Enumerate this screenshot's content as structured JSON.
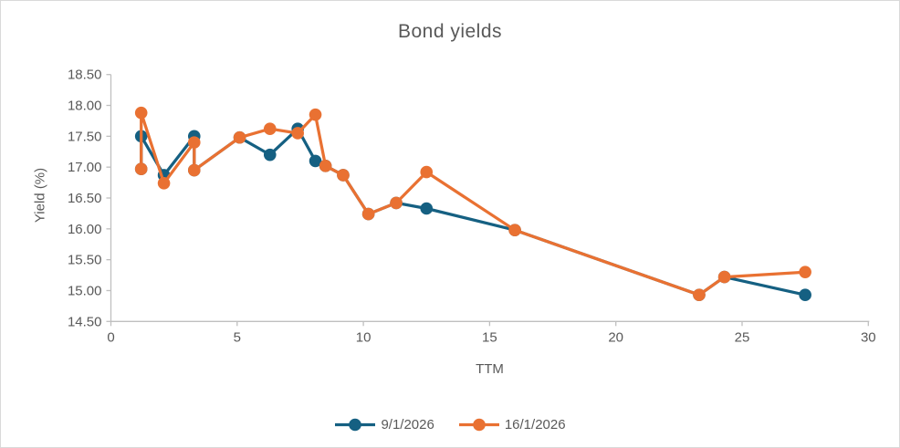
{
  "window": {
    "background": "#FFFFFF",
    "border_color": "#D9D9D9"
  },
  "chart_data": {
    "type": "line",
    "title": "Bond yields",
    "xlabel": "TTM",
    "ylabel": "Yield (%)",
    "xlim": [
      0,
      30
    ],
    "x_ticks": [
      0,
      5,
      10,
      15,
      20,
      25,
      30
    ],
    "ylim": [
      14.5,
      18.5
    ],
    "y_ticks": [
      18.5,
      18.0,
      17.5,
      17.0,
      16.5,
      16.0,
      15.5,
      15.0,
      14.5
    ],
    "y_tick_decimals": 2,
    "grid": false,
    "legend_position": "bottom",
    "axis_color": "#BFBFBF",
    "text_color": "#595959",
    "marker_style": "circle",
    "series": [
      {
        "name": "9/1/2026",
        "color": "#156082",
        "points": [
          [
            1.2,
            16.97
          ],
          [
            1.2,
            17.5
          ],
          [
            2.1,
            16.87
          ],
          [
            3.3,
            17.5
          ],
          [
            3.3,
            16.95
          ],
          [
            5.1,
            17.48
          ],
          [
            6.3,
            17.2
          ],
          [
            7.4,
            17.62
          ],
          [
            8.1,
            17.1
          ],
          [
            8.5,
            17.02
          ],
          [
            9.2,
            16.87
          ],
          [
            10.2,
            16.24
          ],
          [
            11.3,
            16.42
          ],
          [
            12.5,
            16.33
          ],
          [
            16.0,
            15.98
          ],
          [
            23.3,
            14.93
          ],
          [
            24.3,
            15.22
          ],
          [
            27.5,
            14.93
          ]
        ]
      },
      {
        "name": "16/1/2026",
        "color": "#E97132",
        "points": [
          [
            1.2,
            16.97
          ],
          [
            1.2,
            17.88
          ],
          [
            2.1,
            16.74
          ],
          [
            3.3,
            17.4
          ],
          [
            3.3,
            16.95
          ],
          [
            5.1,
            17.48
          ],
          [
            6.3,
            17.62
          ],
          [
            7.4,
            17.55
          ],
          [
            8.1,
            17.85
          ],
          [
            8.5,
            17.02
          ],
          [
            9.2,
            16.87
          ],
          [
            10.2,
            16.24
          ],
          [
            11.3,
            16.42
          ],
          [
            12.5,
            16.92
          ],
          [
            16.0,
            15.98
          ],
          [
            23.3,
            14.93
          ],
          [
            24.3,
            15.22
          ],
          [
            27.5,
            15.3
          ]
        ]
      }
    ]
  }
}
